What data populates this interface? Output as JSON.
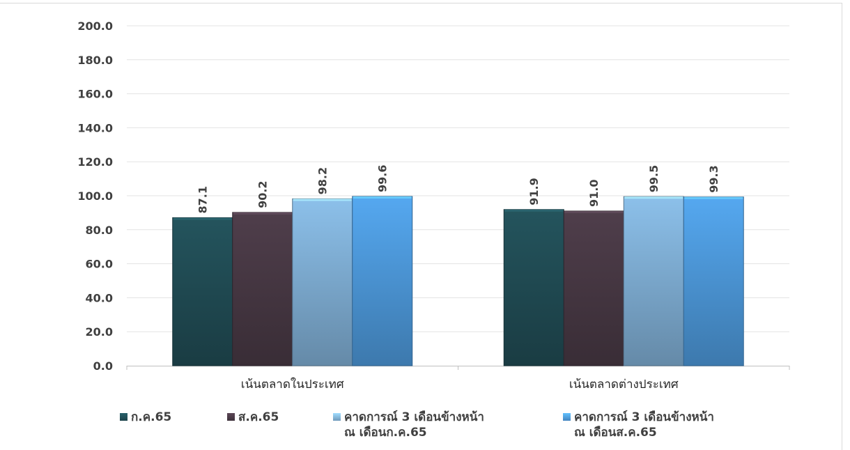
{
  "chart_data": {
    "type": "bar",
    "categories": [
      "เน้นตลาดในประเทศ",
      "เน้นตลาดต่างประเทศ"
    ],
    "series": [
      {
        "name": "ก.ค.65",
        "values": [
          87.1,
          91.9
        ],
        "color": "#24545d"
      },
      {
        "name": "ส.ค.65",
        "values": [
          90.2,
          91.0
        ],
        "color": "#4f3e4b"
      },
      {
        "name": "คาดการณ์ 3 เดือนข้างหน้า\nณ เดือนก.ค.65",
        "values": [
          98.2,
          99.5
        ],
        "color": "#8cc0ea"
      },
      {
        "name": "คาดการณ์ 3 เดือนข้างหน้า\nณ เดือนส.ค.65",
        "values": [
          99.6,
          99.3
        ],
        "color": "#55a8f0"
      }
    ],
    "y_ticks": [
      "0.0",
      "20.0",
      "40.0",
      "60.0",
      "80.0",
      "100.0",
      "120.0",
      "140.0",
      "160.0",
      "180.0",
      "200.0"
    ],
    "ylim": [
      0,
      200
    ],
    "data_labels": [
      [
        "87.1",
        "91.9"
      ],
      [
        "90.2",
        "91.0"
      ],
      [
        "98.2",
        "99.5"
      ],
      [
        "99.6",
        "99.3"
      ]
    ],
    "grid": true,
    "legend_position": "bottom"
  }
}
